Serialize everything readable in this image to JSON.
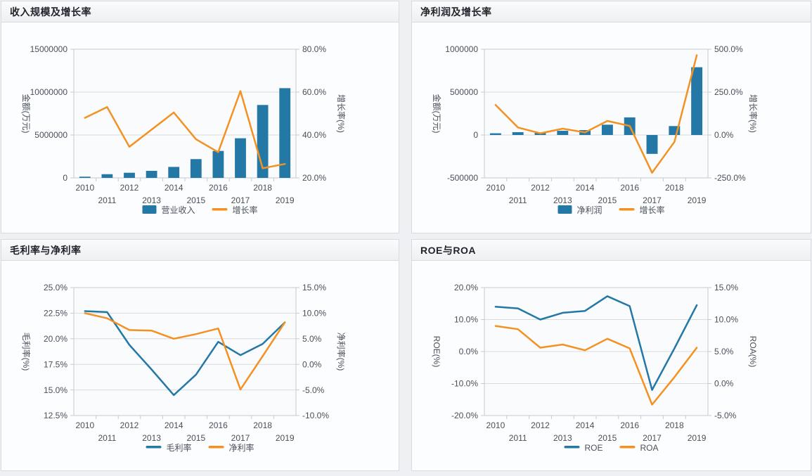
{
  "app": {
    "panel_titles": [
      "收入规模及增长率",
      "净利润及增长率",
      "毛利率与净利率",
      "ROE与ROA"
    ]
  },
  "style_colors": {
    "bar_blue": "#2478a6",
    "line_orange": "#f39122",
    "plot_background": "#fafbfc",
    "plot_border": "#c6cacf",
    "grid_line": "#d9dbde",
    "tick_text": "#49505a",
    "axis_name_text": "#9ba1aa"
  },
  "chart_data": [
    {
      "type": "bar",
      "title": "收入规模及增长率",
      "categories": [
        "2010",
        "2011",
        "2012",
        "2013",
        "2014",
        "2015",
        "2016",
        "2017",
        "2018",
        "2019"
      ],
      "left_axis": {
        "name": "金额(万元)",
        "min": 0,
        "max": 15000000,
        "tick_labels": [
          "15000000",
          "10000000",
          "5000000",
          "0"
        ]
      },
      "right_axis": {
        "name": "增长率(%)",
        "min": 20,
        "max": 80,
        "tick_labels": [
          "80.0%",
          "60.0%",
          "40.0%",
          "20.0%"
        ]
      },
      "series": [
        {
          "name": "营业收入",
          "type": "bar",
          "axis": "left",
          "color": "#2478a6",
          "values": [
            140000,
            430000,
            600000,
            820000,
            1280000,
            2190000,
            3140000,
            4620000,
            8500000,
            10460000
          ]
        },
        {
          "name": "增长率",
          "type": "line",
          "axis": "right",
          "color": "#f39122",
          "values": [
            48,
            53,
            34.5,
            42.5,
            50.5,
            38,
            32,
            60.5,
            24.5,
            26.5
          ]
        }
      ],
      "legend": [
        "营业收入",
        "增长率"
      ],
      "legend_position": "bottom",
      "grid": true
    },
    {
      "type": "bar",
      "title": "净利润及增长率",
      "categories": [
        "2010",
        "2011",
        "2012",
        "2013",
        "2014",
        "2015",
        "2016",
        "2017",
        "2018",
        "2019"
      ],
      "left_axis": {
        "name": "金额(万元)",
        "min": -500000,
        "max": 1000000,
        "tick_labels": [
          "1000000",
          "500000",
          "0",
          "-500000"
        ]
      },
      "right_axis": {
        "name": "增长率(%)",
        "min": -250,
        "max": 500,
        "tick_labels": [
          "500.0%",
          "250.0%",
          "0.0%",
          "-250.0%"
        ]
      },
      "series": [
        {
          "name": "净利润",
          "type": "bar",
          "axis": "left",
          "color": "#2478a6",
          "values": [
            20000,
            33000,
            25000,
            49000,
            57000,
            120000,
            205000,
            -220000,
            104000,
            790000
          ]
        },
        {
          "name": "增长率",
          "type": "line",
          "axis": "right",
          "color": "#f39122",
          "values": [
            175,
            44,
            10,
            37,
            15,
            82,
            53,
            -220,
            -40,
            465
          ]
        }
      ],
      "legend": [
        "净利润",
        "增长率"
      ],
      "legend_position": "bottom",
      "grid": true
    },
    {
      "type": "line",
      "title": "毛利率与净利率",
      "categories": [
        "2010",
        "2011",
        "2012",
        "2013",
        "2014",
        "2015",
        "2016",
        "2017",
        "2018",
        "2019"
      ],
      "left_axis": {
        "name": "毛利率(%)",
        "min": 12.5,
        "max": 25,
        "tick_labels": [
          "25.0%",
          "22.5%",
          "20.0%",
          "17.5%",
          "15.0%",
          "12.5%"
        ]
      },
      "right_axis": {
        "name": "净利率(%)",
        "min": -10,
        "max": 15,
        "tick_labels": [
          "15.0%",
          "10.0%",
          "5.0%",
          "0.0%",
          "-5.0%",
          "-10.0%"
        ]
      },
      "series": [
        {
          "name": "毛利率",
          "type": "line",
          "axis": "left",
          "color": "#2478a6",
          "values": [
            22.7,
            22.6,
            19.4,
            17.0,
            14.5,
            16.5,
            19.7,
            18.4,
            19.5,
            21.6
          ]
        },
        {
          "name": "净利率",
          "type": "line",
          "axis": "right",
          "color": "#f39122",
          "values": [
            10.0,
            9.0,
            6.7,
            6.6,
            5.0,
            5.9,
            7.0,
            -4.9,
            1.6,
            8.2
          ]
        }
      ],
      "legend": [
        "毛利率",
        "净利率"
      ],
      "legend_position": "bottom",
      "grid": true
    },
    {
      "type": "line",
      "title": "ROE与ROA",
      "categories": [
        "2010",
        "2011",
        "2012",
        "2013",
        "2014",
        "2015",
        "2016",
        "2017",
        "2018",
        "2019"
      ],
      "left_axis": {
        "name": "ROE(%)",
        "min": -20,
        "max": 20,
        "tick_labels": [
          "20.0%",
          "10.0%",
          "0.0%",
          "-10.0%",
          "-20.0%"
        ]
      },
      "right_axis": {
        "name": "ROA(%)",
        "min": -5,
        "max": 15,
        "tick_labels": [
          "15.0%",
          "10.0%",
          "5.0%",
          "0.0%",
          "-5.0%"
        ]
      },
      "series": [
        {
          "name": "ROE",
          "type": "line",
          "axis": "left",
          "color": "#2478a6",
          "values": [
            14.0,
            13.5,
            10.0,
            12.1,
            12.7,
            17.3,
            14.2,
            -12.0,
            1.0,
            14.5
          ]
        },
        {
          "name": "ROA",
          "type": "line",
          "axis": "right",
          "color": "#f39122",
          "values": [
            9.0,
            8.5,
            5.6,
            6.1,
            5.2,
            7.0,
            5.5,
            -3.3,
            1.0,
            5.6
          ]
        }
      ],
      "legend": [
        "ROE",
        "ROA"
      ],
      "legend_position": "bottom",
      "grid": true
    }
  ]
}
